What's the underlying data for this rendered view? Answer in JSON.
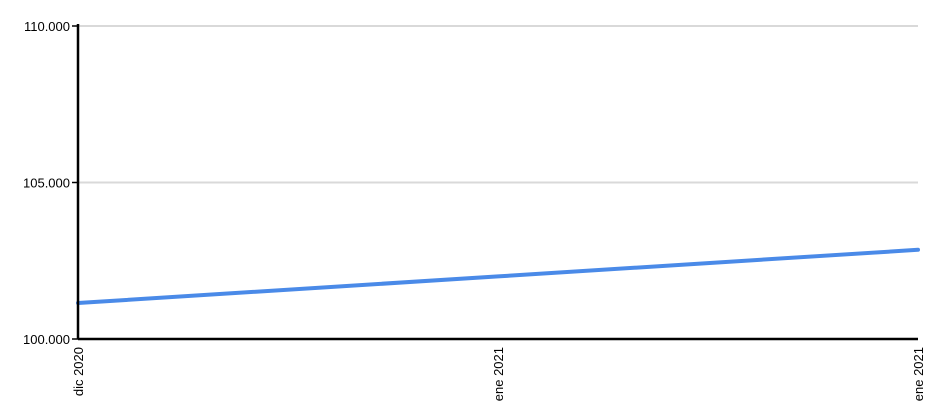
{
  "chart_data": {
    "type": "line",
    "title": "",
    "xlabel": "",
    "ylabel": "",
    "x_ticks": [
      "dic 2020",
      "ene 2021",
      "ene 2021"
    ],
    "y_ticks": [
      "100.000",
      "105.000",
      "110.000"
    ],
    "ylim": [
      100000,
      110000
    ],
    "grid": true,
    "legend": "none",
    "series": [
      {
        "color": "#4a8ae8",
        "points": [
          {
            "x": "dic 2020",
            "y": 101150
          },
          {
            "x": "ene 2021",
            "y": 102000
          },
          {
            "x": "ene 2021",
            "y": 102850
          }
        ]
      }
    ]
  }
}
